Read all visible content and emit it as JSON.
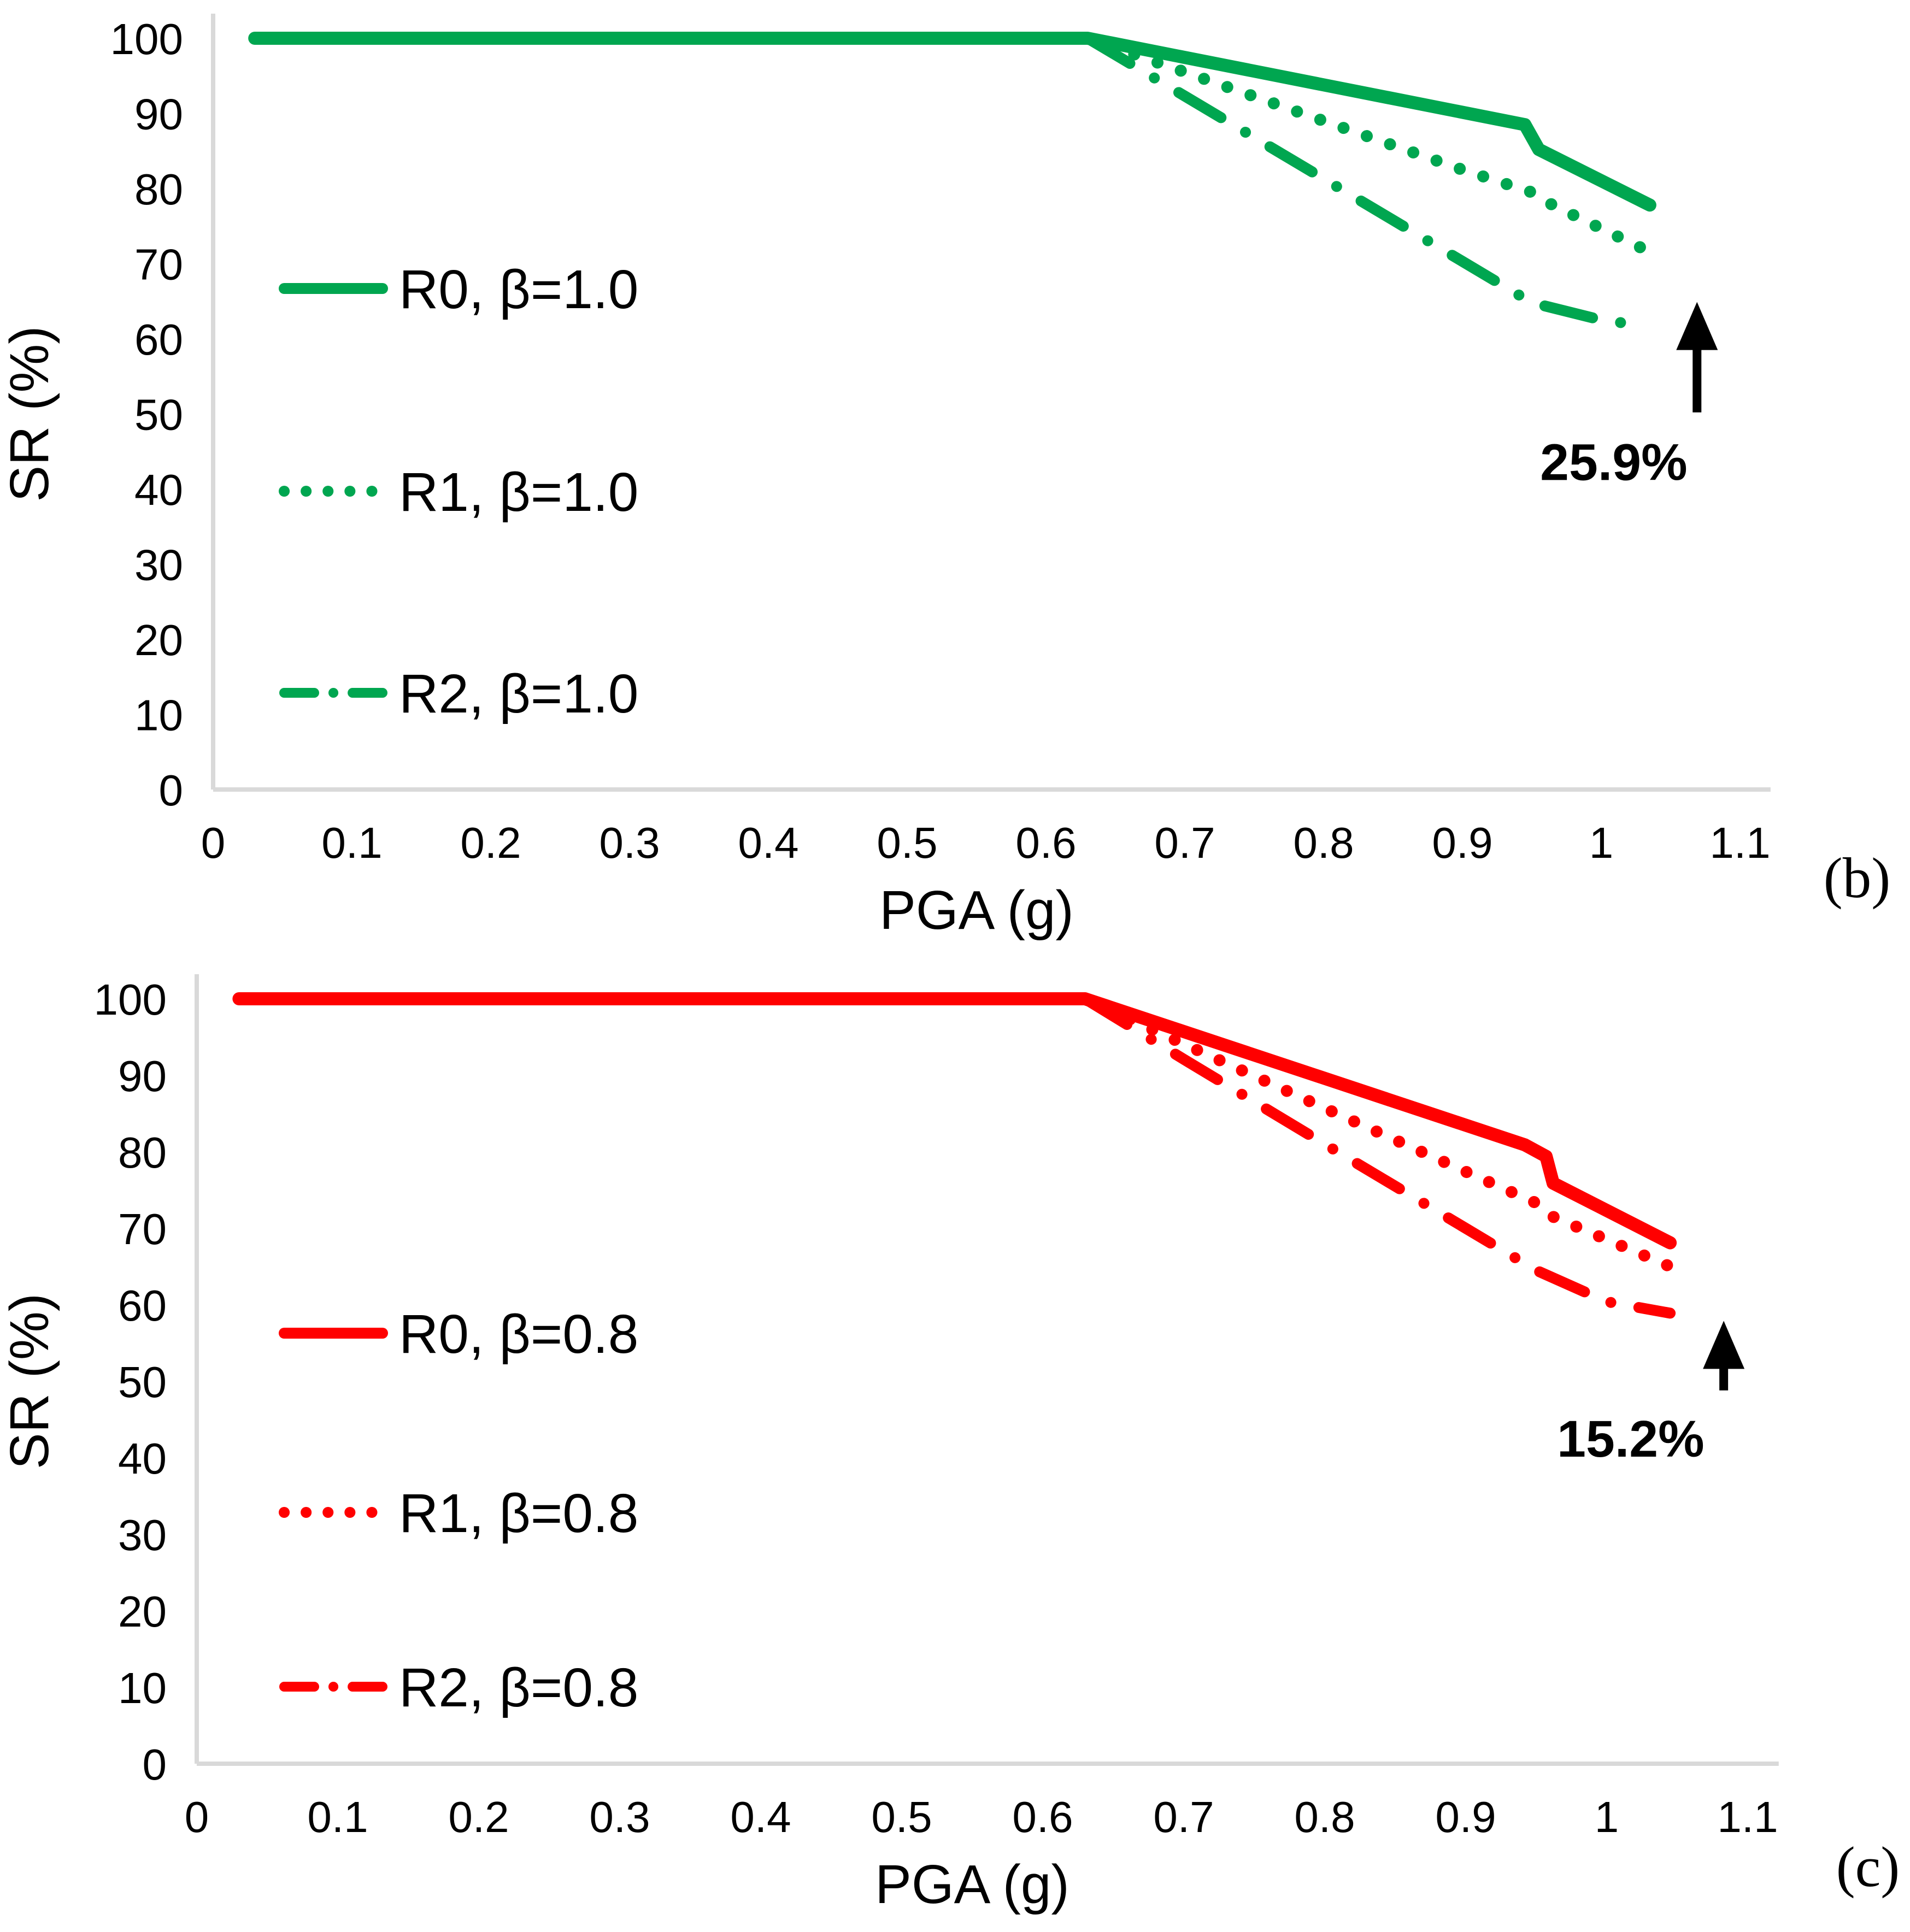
{
  "page": {
    "background": "#FFFFFF"
  },
  "chart_data": [
    {
      "id": "chart-b",
      "type": "line",
      "panel_label": "(b)",
      "xlabel": "PGA (g)",
      "ylabel": "SR (%)",
      "xlim": [
        0,
        1.1
      ],
      "ylim": [
        0,
        100
      ],
      "grid": false,
      "legend_position": "inside-left",
      "line_color": "#00A650",
      "axis_color": "#D9D9D9",
      "text_color": "#000000",
      "x_tick_values": [
        0,
        0.1,
        0.2,
        0.3,
        0.4,
        0.5,
        0.6,
        0.7,
        0.8,
        0.9,
        1,
        1.1
      ],
      "x_tick_labels": [
        "0",
        "0.1",
        "0.2",
        "0.3",
        "0.4",
        "0.5",
        "0.6",
        "0.7",
        "0.8",
        "0.9",
        "1",
        "1.1"
      ],
      "y_ticks": [
        0,
        10,
        20,
        30,
        40,
        50,
        60,
        70,
        80,
        90,
        100
      ],
      "annotation": {
        "text": "25.9%",
        "arrow_direction": "up",
        "arrow_x": 1.069,
        "arrow_sr_from": 50.2,
        "arrow_sr_to": 64.9,
        "label_x": 1.009,
        "label_sr": 43.6
      },
      "series": [
        {
          "name": "R2, β=1.0",
          "style": "dashdot",
          "points": [
            [
              0.63,
              100
            ],
            [
              0.7,
              92.3
            ],
            [
              0.8,
              81.3
            ],
            [
              0.9,
              70.3
            ],
            [
              0.95,
              64.8
            ],
            [
              1.0,
              62.5
            ],
            [
              1.02,
              62.0
            ]
          ]
        },
        {
          "name": "R1, β=1.0",
          "style": "dotted",
          "points": [
            [
              0.63,
              100
            ],
            [
              0.7,
              95.5
            ],
            [
              0.8,
              89.0
            ],
            [
              0.9,
              82.5
            ],
            [
              0.95,
              79.5
            ],
            [
              0.965,
              77.8
            ],
            [
              1.03,
              72.0
            ]
          ]
        },
        {
          "name": "R0, β=1.0",
          "style": "solid",
          "points": [
            [
              0.03,
              100
            ],
            [
              0.63,
              100
            ],
            [
              0.945,
              88.5
            ],
            [
              0.955,
              85.2
            ],
            [
              1.035,
              77.8
            ]
          ]
        }
      ],
      "legend": [
        {
          "label": "R0, β=1.0",
          "style": "solid"
        },
        {
          "label": "R1, β=1.0",
          "style": "dotted"
        },
        {
          "label": "R2, β=1.0",
          "style": "dashdot"
        }
      ]
    },
    {
      "id": "chart-c",
      "type": "line",
      "panel_label": "(c)",
      "xlabel": "PGA (g)",
      "ylabel": "SR (%)",
      "xlim": [
        0,
        1.1
      ],
      "ylim": [
        0,
        100
      ],
      "grid": false,
      "legend_position": "inside-left",
      "line_color": "#FF0000",
      "axis_color": "#D9D9D9",
      "text_color": "#000000",
      "x_tick_values": [
        0,
        0.1,
        0.2,
        0.3,
        0.4,
        0.5,
        0.6,
        0.7,
        0.8,
        0.9,
        1,
        1.1
      ],
      "x_tick_labels": [
        "0",
        "0.1",
        "0.2",
        "0.3",
        "0.4",
        "0.5",
        "0.6",
        "0.7",
        "0.8",
        "0.9",
        "1",
        "1.1"
      ],
      "y_ticks": [
        0,
        10,
        20,
        30,
        40,
        50,
        60,
        70,
        80,
        90,
        100
      ],
      "annotation": {
        "text": "15.2%",
        "arrow_direction": "up",
        "arrow_x": 1.083,
        "arrow_sr_from": 48.8,
        "arrow_sr_to": 57.9,
        "label_x": 1.017,
        "label_sr": 42.5
      },
      "series": [
        {
          "name": "R2, β=0.8",
          "style": "dashdot",
          "points": [
            [
              0.63,
              100
            ],
            [
              0.7,
              92.1
            ],
            [
              0.8,
              81.0
            ],
            [
              0.9,
              70.0
            ],
            [
              0.95,
              64.5
            ],
            [
              1.0,
              60.4
            ],
            [
              1.045,
              58.9
            ]
          ]
        },
        {
          "name": "R1, β=0.8",
          "style": "dotted",
          "points": [
            [
              0.63,
              100
            ],
            [
              0.7,
              94.1
            ],
            [
              0.8,
              85.7
            ],
            [
              0.9,
              77.4
            ],
            [
              0.95,
              73.3
            ],
            [
              0.962,
              71.5
            ],
            [
              1.045,
              65.0
            ]
          ]
        },
        {
          "name": "R0, β=0.8",
          "style": "solid",
          "points": [
            [
              0.03,
              100
            ],
            [
              0.63,
              100
            ],
            [
              0.942,
              80.9
            ],
            [
              0.957,
              79.4
            ],
            [
              0.962,
              75.9
            ],
            [
              1.045,
              68.1
            ]
          ]
        }
      ],
      "legend": [
        {
          "label": "R0, β=0.8",
          "style": "solid"
        },
        {
          "label": "R1, β=0.8",
          "style": "dotted"
        },
        {
          "label": "R2, β=0.8",
          "style": "dashdot"
        }
      ]
    }
  ]
}
